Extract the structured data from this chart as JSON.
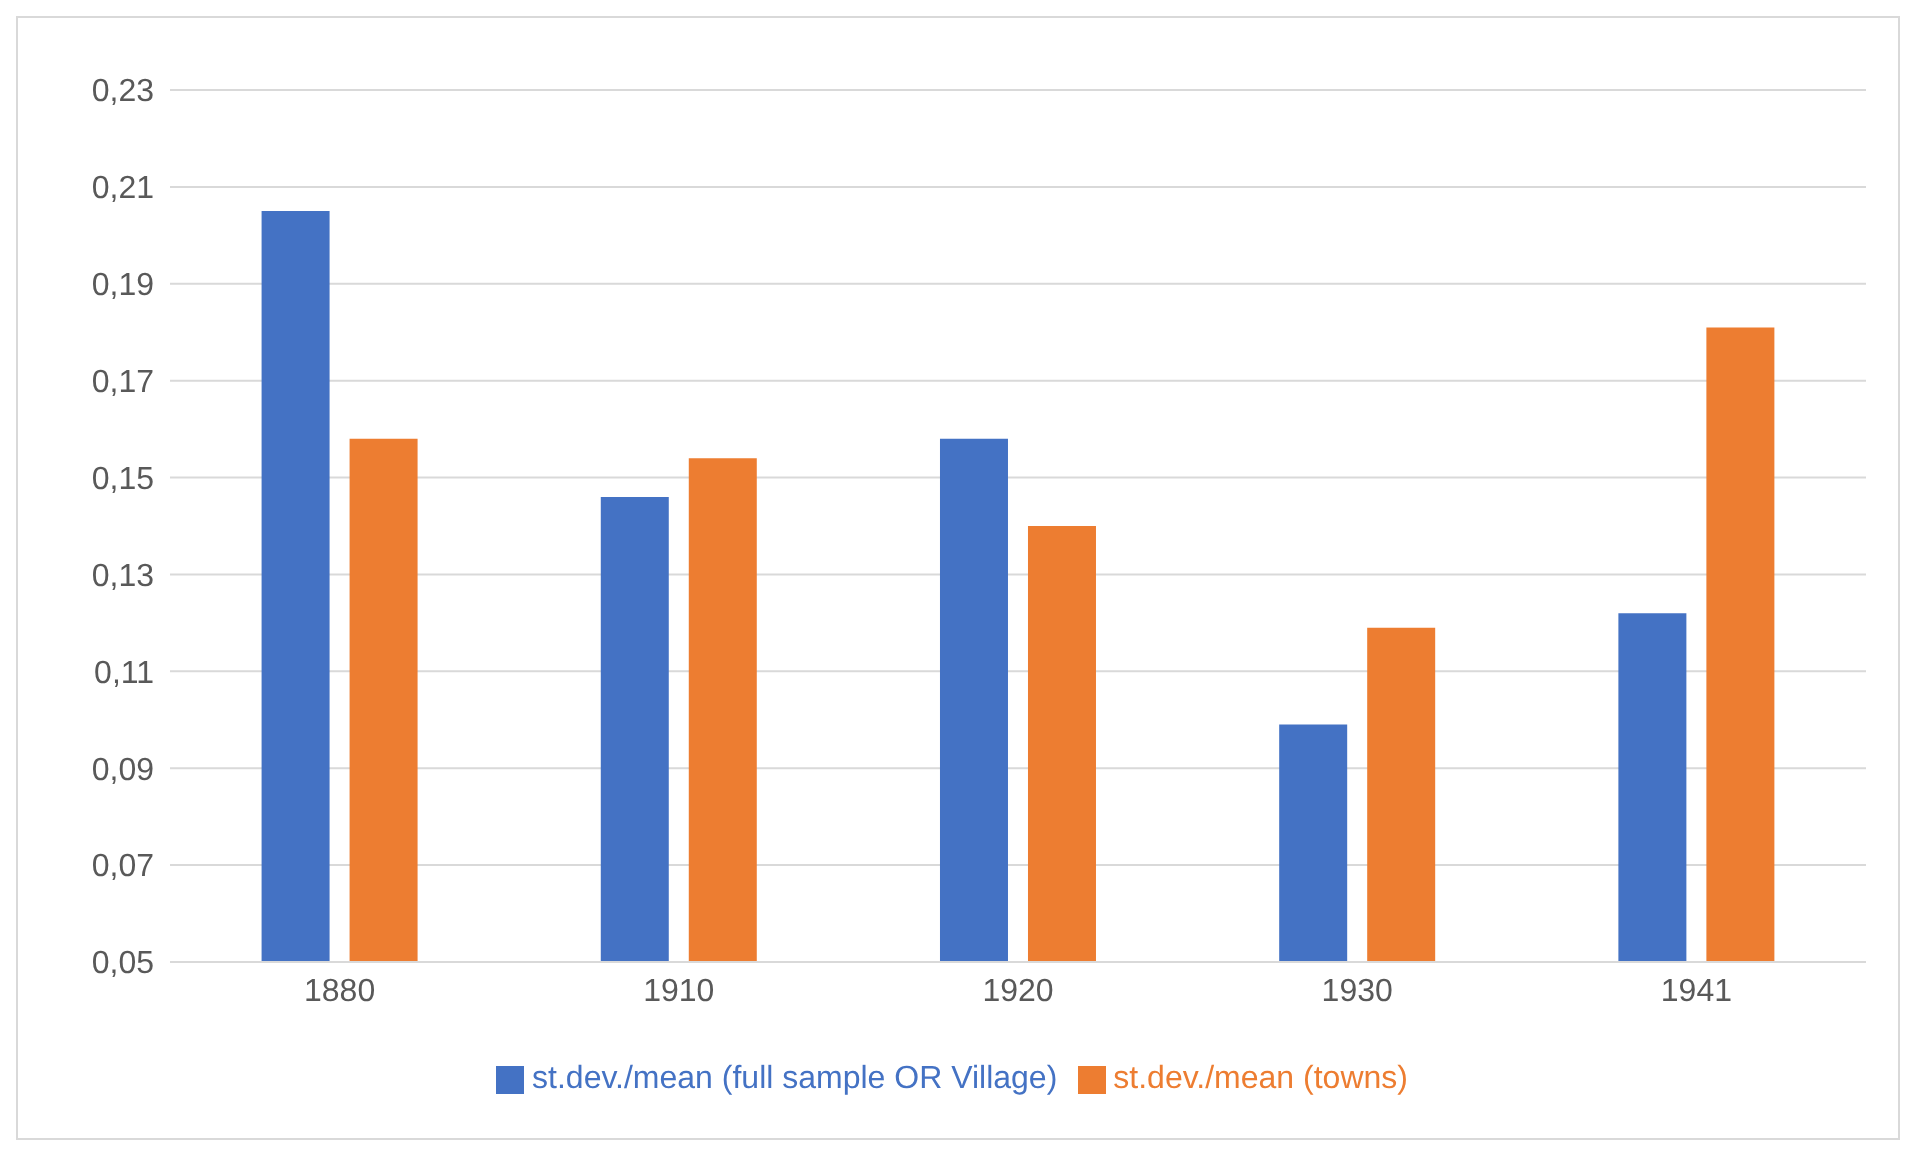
{
  "chart_data": {
    "type": "bar",
    "categories": [
      "1880",
      "1910",
      "1920",
      "1930",
      "1941"
    ],
    "series": [
      {
        "name": "st.dev./mean (full sample OR Village)",
        "color": "#4472c4",
        "values": [
          0.205,
          0.146,
          0.158,
          0.099,
          0.122
        ]
      },
      {
        "name": "st.dev./mean (towns)",
        "color": "#ed7d31",
        "values": [
          0.158,
          0.154,
          0.14,
          0.119,
          0.181
        ]
      }
    ],
    "ylim": [
      0.05,
      0.23
    ],
    "yticks": [
      {
        "value": 0.05,
        "label": "0,05"
      },
      {
        "value": 0.07,
        "label": "0,07"
      },
      {
        "value": 0.09,
        "label": "0,09"
      },
      {
        "value": 0.11,
        "label": "0,11"
      },
      {
        "value": 0.13,
        "label": "0,13"
      },
      {
        "value": 0.15,
        "label": "0,15"
      },
      {
        "value": 0.17,
        "label": "0,17"
      },
      {
        "value": 0.19,
        "label": "0,19"
      },
      {
        "value": 0.21,
        "label": "0,21"
      },
      {
        "value": 0.23,
        "label": "0,23"
      }
    ],
    "grid": "y",
    "legend": "bottom"
  }
}
